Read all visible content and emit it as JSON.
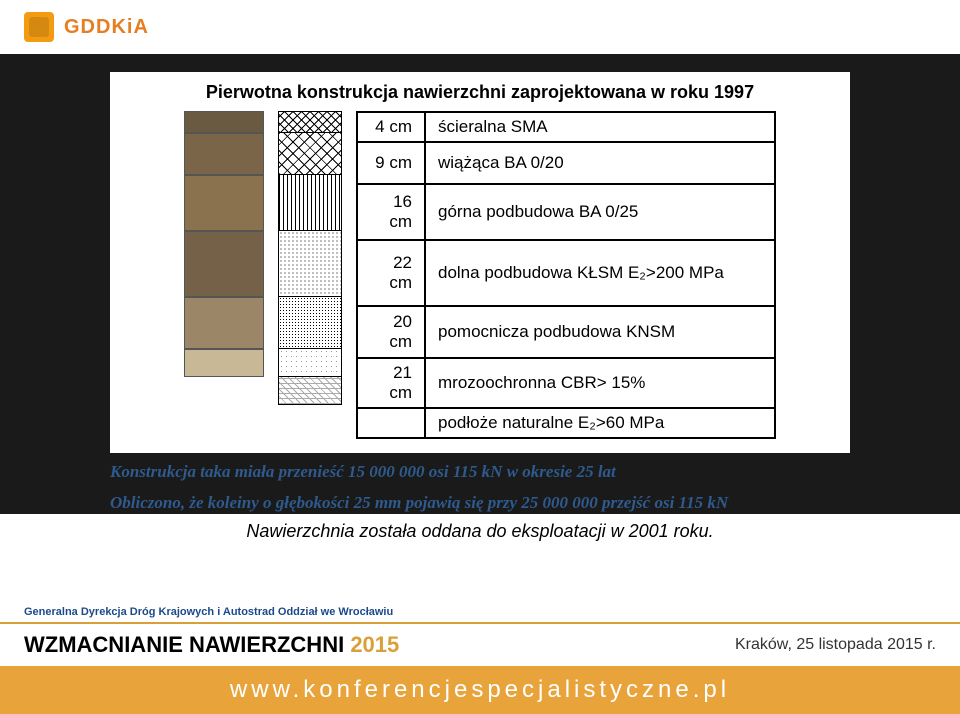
{
  "logo": "GDDKiA",
  "title": "Pierwotna konstrukcja nawierzchni zaprojektowana w roku 1997",
  "rows": [
    {
      "w": "4 cm",
      "d": "ścieralna SMA"
    },
    {
      "w": "9 cm",
      "d": "wiążąca BA  0/20"
    },
    {
      "w": "16 cm",
      "d": "górna podbudowa BA 0/25"
    },
    {
      "w": "22 cm",
      "d": "dolna podbudowa KŁSM E₂>200 MPa"
    },
    {
      "w": "20 cm",
      "d": "pomocnicza podbudowa KNSM"
    },
    {
      "w": "21 cm",
      "d": "mrozoochronna CBR> 15%"
    },
    {
      "w": "",
      "d": "podłoże naturalne E₂>60 MPa"
    }
  ],
  "note1": "Konstrukcja taka miała przenieść 15 000 000 osi 115 kN w okresie 25 lat",
  "note2": "Obliczono, że koleiny o głębokości 25 mm pojawią się przy 25 000 000 przejść osi 115 kN",
  "note3": "Nawierzchnia została oddana do eksploatacji w 2001 roku.",
  "org": "Generalna Dyrekcja Dróg Krajowych i Autostrad Oddział we Wrocławiu",
  "conf1a": "WZMACNIANIE NAWIERZCHNI ",
  "conf1b": "2015",
  "confloc": "Kraków, 25 listopada 2015 r.",
  "url": "www.konferencjespecjalistyczne.pl",
  "colors": {
    "accent": "#e8a43a",
    "blue": "#2e5a8e"
  }
}
